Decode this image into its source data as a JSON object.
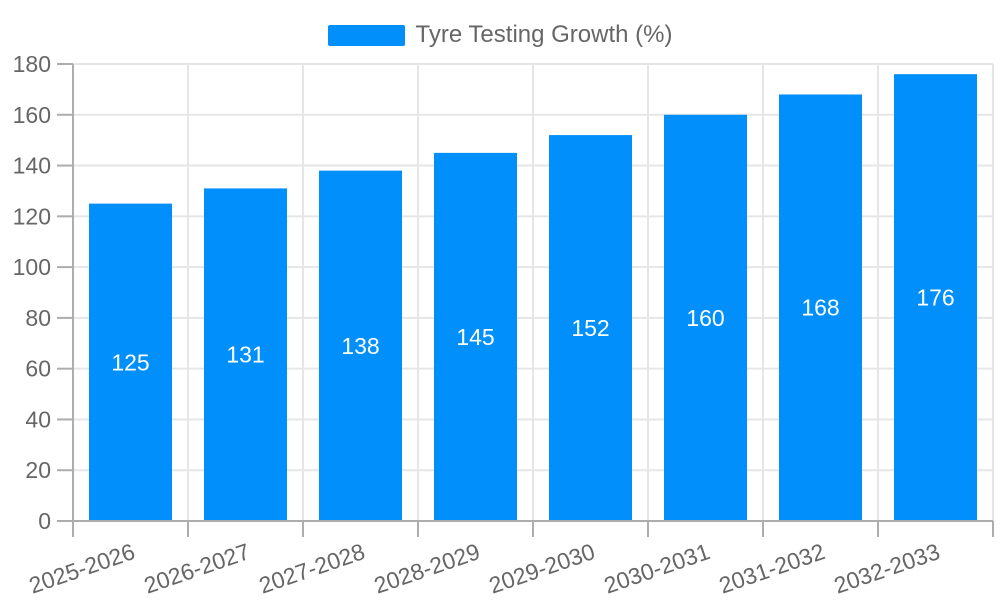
{
  "chart_data": {
    "type": "bar",
    "title": "Tyre Testing Growth (%)",
    "categories": [
      "2025-2026",
      "2026-2027",
      "2027-2028",
      "2028-2029",
      "2029-2030",
      "2030-2031",
      "2031-2032",
      "2032-2033"
    ],
    "values": [
      125,
      131,
      138,
      145,
      152,
      160,
      168,
      176
    ],
    "xlabel": "",
    "ylabel": "",
    "ylim": [
      0,
      180
    ],
    "ytick_step": 20,
    "grid": true,
    "legend_position": "top",
    "x_tick_rotation_deg": -19,
    "colors": {
      "bar": "#008FFB",
      "bar_label_text": "#FFFFFF",
      "axis_text": "#666666",
      "gridline": "#E6E6E6",
      "axis_line": "#ADADAD"
    }
  }
}
